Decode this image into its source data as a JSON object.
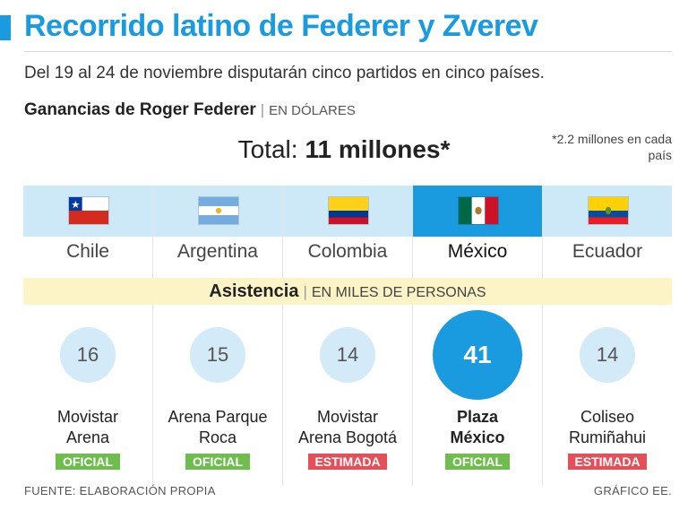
{
  "title": "Recorrido latino de Federer y Zverev",
  "subtitle": "Del 19 al 24 de noviembre disputarán cinco partidos en cinco países.",
  "earnings": {
    "label": "Ganancias de Roger Federer",
    "separator": "|",
    "unit": "EN DÓLARES",
    "total_label": "Total:",
    "total_value": "11 millones*",
    "note": "*2.2 millones en cada país"
  },
  "attendance": {
    "label": "Asistencia",
    "separator": "|",
    "unit": "EN MILES DE PERSONAS"
  },
  "chart_data": {
    "type": "bubble",
    "title": "Asistencia",
    "unit": "EN MILES DE PERSONAS",
    "categories": [
      "Chile",
      "Argentina",
      "Colombia",
      "México",
      "Ecuador"
    ],
    "values": [
      16,
      15,
      14,
      41,
      14
    ],
    "venues": [
      "Movistar Arena",
      "Arena Parque Roca",
      "Movistar Arena Bogotá",
      "Plaza México",
      "Coliseo Rumiñahui"
    ],
    "status": [
      "OFICIAL",
      "OFICIAL",
      "ESTIMADA",
      "OFICIAL",
      "ESTIMADA"
    ],
    "highlight": "México"
  },
  "countries": [
    {
      "name": "Chile",
      "value": "16",
      "venue_l1": "Movistar",
      "venue_l2": "Arena",
      "status": "OFICIAL"
    },
    {
      "name": "Argentina",
      "value": "15",
      "venue_l1": "Arena Parque",
      "venue_l2": "Roca",
      "status": "OFICIAL"
    },
    {
      "name": "Colombia",
      "value": "14",
      "venue_l1": "Movistar",
      "venue_l2": "Arena Bogotá",
      "status": "ESTIMADA"
    },
    {
      "name": "México",
      "value": "41",
      "venue_l1": "Plaza",
      "venue_l2": "México",
      "status": "OFICIAL"
    },
    {
      "name": "Ecuador",
      "value": "14",
      "venue_l1": "Coliseo",
      "venue_l2": "Rumiñahui",
      "status": "ESTIMADA"
    }
  ],
  "colors": {
    "accent": "#1a9be0",
    "light_blue": "#cde8f7",
    "circle": "#d3eaf8",
    "oficial": "#6fbd4f",
    "estimada": "#e4505a",
    "band_yellow": "#fcf3c6"
  },
  "footer": {
    "source": "FUENTE: ELABORACIÓN PROPIA",
    "credit": "GRÁFICO EE."
  }
}
